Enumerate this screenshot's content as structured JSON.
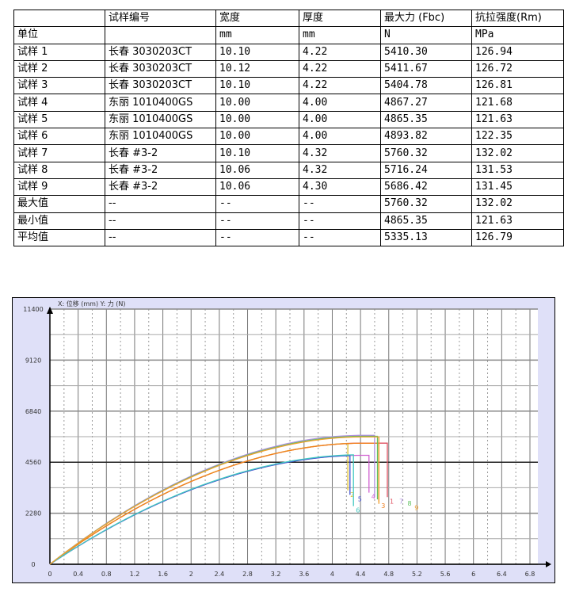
{
  "table": {
    "header": [
      "",
      "试样编号",
      "宽度",
      "厚度",
      "最大力 (Fbc)",
      "抗拉强度(Rm)"
    ],
    "units": [
      "单位",
      "",
      "mm",
      "mm",
      "N",
      "MPa"
    ],
    "rows": [
      [
        "试样 1",
        "长春 3030203CT",
        "10.10",
        "4.22",
        "5410.30",
        "126.94"
      ],
      [
        "试样 2",
        "长春 3030203CT",
        "10.12",
        "4.22",
        "5411.67",
        "126.72"
      ],
      [
        "试样 3",
        "长春 3030203CT",
        "10.10",
        "4.22",
        "5404.78",
        "126.81"
      ],
      [
        "试样 4",
        "东丽 1010400GS",
        "10.00",
        "4.00",
        "4867.27",
        "121.68"
      ],
      [
        "试样 5",
        "东丽 1010400GS",
        "10.00",
        "4.00",
        "4865.35",
        "121.63"
      ],
      [
        "试样 6",
        "东丽 1010400GS",
        "10.00",
        "4.00",
        "4893.82",
        "122.35"
      ],
      [
        "试样 7",
        "长春 #3-2",
        "10.10",
        "4.32",
        "5760.32",
        "132.02"
      ],
      [
        "试样 8",
        "长春 #3-2",
        "10.06",
        "4.32",
        "5716.24",
        "131.53"
      ],
      [
        "试样 9",
        "长春 #3-2",
        "10.06",
        "4.30",
        "5686.42",
        "131.45"
      ],
      [
        "最大值",
        "--",
        "--",
        "--",
        "5760.32",
        "132.02"
      ],
      [
        "最小值",
        "--",
        "--",
        "--",
        "4865.35",
        "121.63"
      ],
      [
        "平均值",
        "--",
        "--",
        "--",
        "5335.13",
        "126.79"
      ]
    ]
  },
  "chart_data": {
    "type": "line",
    "title": "X: 位移 (mm)   Y: 力 (N)",
    "xlim": [
      0,
      6.8
    ],
    "ylim": [
      0,
      11400
    ],
    "xticks": [
      "0",
      "0.4",
      "0.8",
      "1.2",
      "1.6",
      "2",
      "2.4",
      "2.8",
      "3.2",
      "3.6",
      "4",
      "4.4",
      "4.8",
      "5.2",
      "5.6",
      "6",
      "6.4",
      "6.8"
    ],
    "yticks": [
      "0",
      "2280",
      "4560",
      "6840",
      "9120",
      "11400"
    ],
    "grid": true,
    "series": [
      {
        "name": "1",
        "color": "#e05060",
        "peak": 5410,
        "break_x": 4.78,
        "end_y": 3000
      },
      {
        "name": "2",
        "color": "#e0c030",
        "peak": 5411,
        "break_x": 4.22,
        "end_y": 3300
      },
      {
        "name": "3",
        "color": "#f08020",
        "peak": 5405,
        "break_x": 4.66,
        "end_y": 2800
      },
      {
        "name": "4",
        "color": "#d060d0",
        "peak": 4867,
        "break_x": 4.52,
        "end_y": 3200
      },
      {
        "name": "5",
        "color": "#4050d0",
        "peak": 4865,
        "break_x": 4.25,
        "end_y": 3100
      },
      {
        "name": "6",
        "color": "#40c8c0",
        "peak": 4894,
        "break_x": 4.3,
        "end_y": 2600
      },
      {
        "name": "7",
        "color": "#b090e0",
        "peak": 5760,
        "break_x": 4.6,
        "end_y": 3000
      },
      {
        "name": "8",
        "color": "#60c060",
        "peak": 5716,
        "break_x": 4.64,
        "end_y": 2900
      },
      {
        "name": "9",
        "color": "#f0a030",
        "peak": 5686,
        "break_x": 4.66,
        "end_y": 2700
      }
    ]
  }
}
